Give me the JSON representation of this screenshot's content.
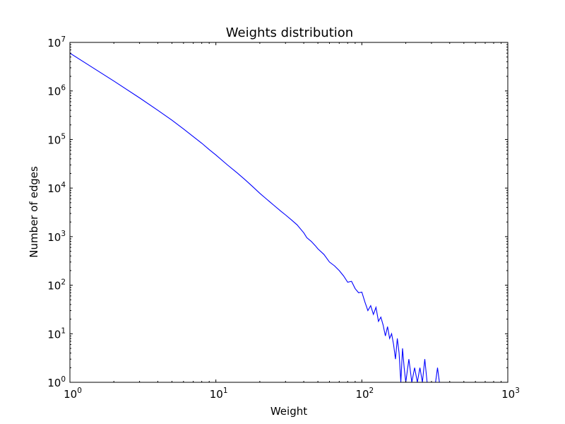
{
  "chart_data": {
    "type": "line",
    "title": "Weights distribution",
    "xlabel": "Weight",
    "ylabel": "Number of edges",
    "xscale": "log",
    "yscale": "log",
    "xlim": [
      1,
      1000
    ],
    "ylim": [
      1,
      10000000
    ],
    "grid": false,
    "legend": "none",
    "colors": {
      "line": "#0000ff",
      "axes": "#000000",
      "background": "#ffffff"
    },
    "x_ticks": [
      {
        "base": "10",
        "exp": "0",
        "value": 1
      },
      {
        "base": "10",
        "exp": "1",
        "value": 10
      },
      {
        "base": "10",
        "exp": "2",
        "value": 100
      },
      {
        "base": "10",
        "exp": "3",
        "value": 1000
      }
    ],
    "y_ticks": [
      {
        "base": "10",
        "exp": "0",
        "value": 1
      },
      {
        "base": "10",
        "exp": "1",
        "value": 10
      },
      {
        "base": "10",
        "exp": "2",
        "value": 100
      },
      {
        "base": "10",
        "exp": "3",
        "value": 1000
      },
      {
        "base": "10",
        "exp": "4",
        "value": 10000
      },
      {
        "base": "10",
        "exp": "5",
        "value": 100000
      },
      {
        "base": "10",
        "exp": "6",
        "value": 1000000
      },
      {
        "base": "10",
        "exp": "7",
        "value": 10000000
      }
    ],
    "series": [
      {
        "x": [
          1,
          2,
          3,
          4,
          5,
          6,
          7,
          8,
          9,
          10,
          12,
          14,
          16,
          18,
          20,
          22,
          25,
          28,
          30,
          33,
          36,
          40,
          42,
          45,
          48,
          50,
          55,
          60,
          65,
          70,
          75,
          80,
          85,
          90,
          95,
          100,
          105,
          110,
          115,
          120,
          125,
          130,
          135,
          140,
          145,
          150,
          155,
          160,
          165,
          170,
          175,
          180,
          185,
          190,
          195,
          200,
          210,
          220,
          230,
          240,
          250,
          260,
          270,
          280,
          290,
          300,
          310,
          320,
          330,
          340,
          350,
          360
        ],
        "y": [
          6000000,
          1600000,
          720000,
          400000,
          250000,
          165000,
          115000,
          84000,
          62000,
          48000,
          30000,
          20500,
          14500,
          10500,
          7800,
          6100,
          4400,
          3300,
          2800,
          2200,
          1750,
          1200,
          950,
          800,
          650,
          560,
          430,
          300,
          250,
          200,
          155,
          115,
          120,
          85,
          70,
          72,
          45,
          30,
          38,
          25,
          35,
          18,
          22,
          15,
          9,
          14,
          8,
          10,
          6,
          3,
          8,
          4,
          1,
          5,
          2,
          1,
          3,
          1,
          2,
          1,
          2,
          1,
          3,
          1,
          1,
          1,
          1,
          1,
          2,
          1,
          1,
          1
        ]
      }
    ]
  }
}
